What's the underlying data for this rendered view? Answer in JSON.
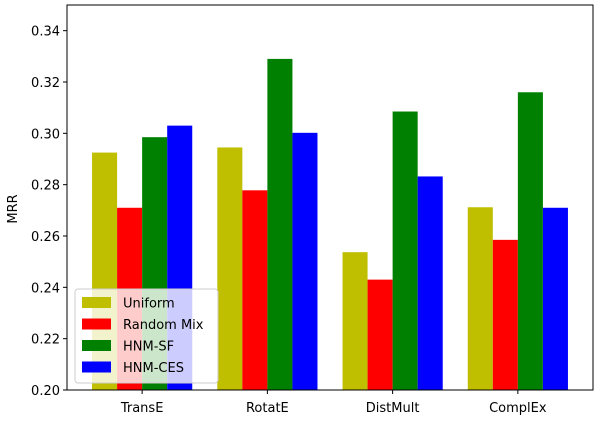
{
  "chart_data": {
    "type": "bar",
    "ylabel": "MRR",
    "xlabel": "",
    "ylim": [
      0.2,
      0.35
    ],
    "yticks": [
      "0.20",
      "0.22",
      "0.24",
      "0.26",
      "0.28",
      "0.30",
      "0.32",
      "0.34"
    ],
    "categories": [
      "TransE",
      "RotatE",
      "DistMult",
      "ComplEx"
    ],
    "grid": false,
    "legend_position": "lower-left",
    "series": [
      {
        "name": "Uniform",
        "color": "#bfbf00",
        "values": [
          0.2925,
          0.2945,
          0.2537,
          0.2712
        ]
      },
      {
        "name": "Random Mix",
        "color": "#ff0000",
        "values": [
          0.271,
          0.2778,
          0.243,
          0.2585
        ]
      },
      {
        "name": "HNM-SF",
        "color": "#008000",
        "values": [
          0.2985,
          0.329,
          0.3085,
          0.316
        ]
      },
      {
        "name": "HNM-CES",
        "color": "#0000ff",
        "values": [
          0.303,
          0.3002,
          0.2832,
          0.271
        ]
      }
    ]
  }
}
